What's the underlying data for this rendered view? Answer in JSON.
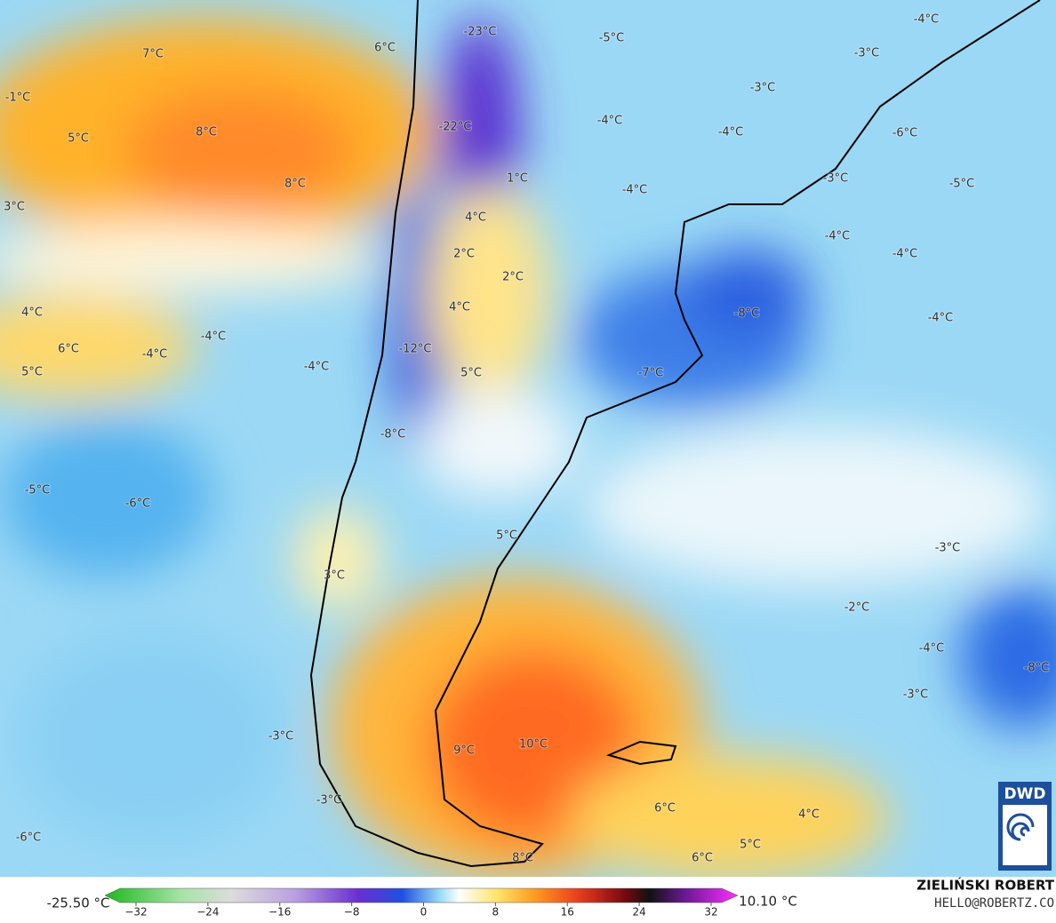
{
  "map": {
    "labels": [
      "-23°C",
      "-5°C",
      "-4°C",
      "-3°C",
      "7°C",
      "6°C",
      "-1°C",
      "-3°C",
      "-4°C",
      "-22°C",
      "8°C",
      "5°C",
      "-4°C",
      "-6°C",
      "8°C",
      "1°C",
      "-4°C",
      "-3°C",
      "-5°C",
      "3°C",
      "4°C",
      "-4°C",
      "2°C",
      "-4°C",
      "2°C",
      "4°C",
      "4°C",
      "-8°C",
      "-4°C",
      "-4°C",
      "6°C",
      "-12°C",
      "-4°C",
      "5°C",
      "-4°C",
      "5°C",
      "-7°C",
      "-8°C",
      "-5°C",
      "-6°C",
      "5°C",
      "-3°C",
      "3°C",
      "-2°C",
      "-4°C",
      "-8°C",
      "-3°C",
      "-3°C",
      "9°C",
      "10°C",
      "-3°C",
      "6°C",
      "4°C",
      "-6°C",
      "5°C",
      "6°C",
      "8°C"
    ]
  },
  "legend": {
    "min": "-25.50 °C",
    "max": "10.10 °C",
    "ticks": [
      "−32",
      "−24",
      "−16",
      "−8",
      "0",
      "8",
      "16",
      "24",
      "32"
    ]
  },
  "logo": "DWD",
  "credit": {
    "name": "ZIELIŃSKI ROBERT",
    "email": "HELLO@ROBERTZ.CO"
  }
}
